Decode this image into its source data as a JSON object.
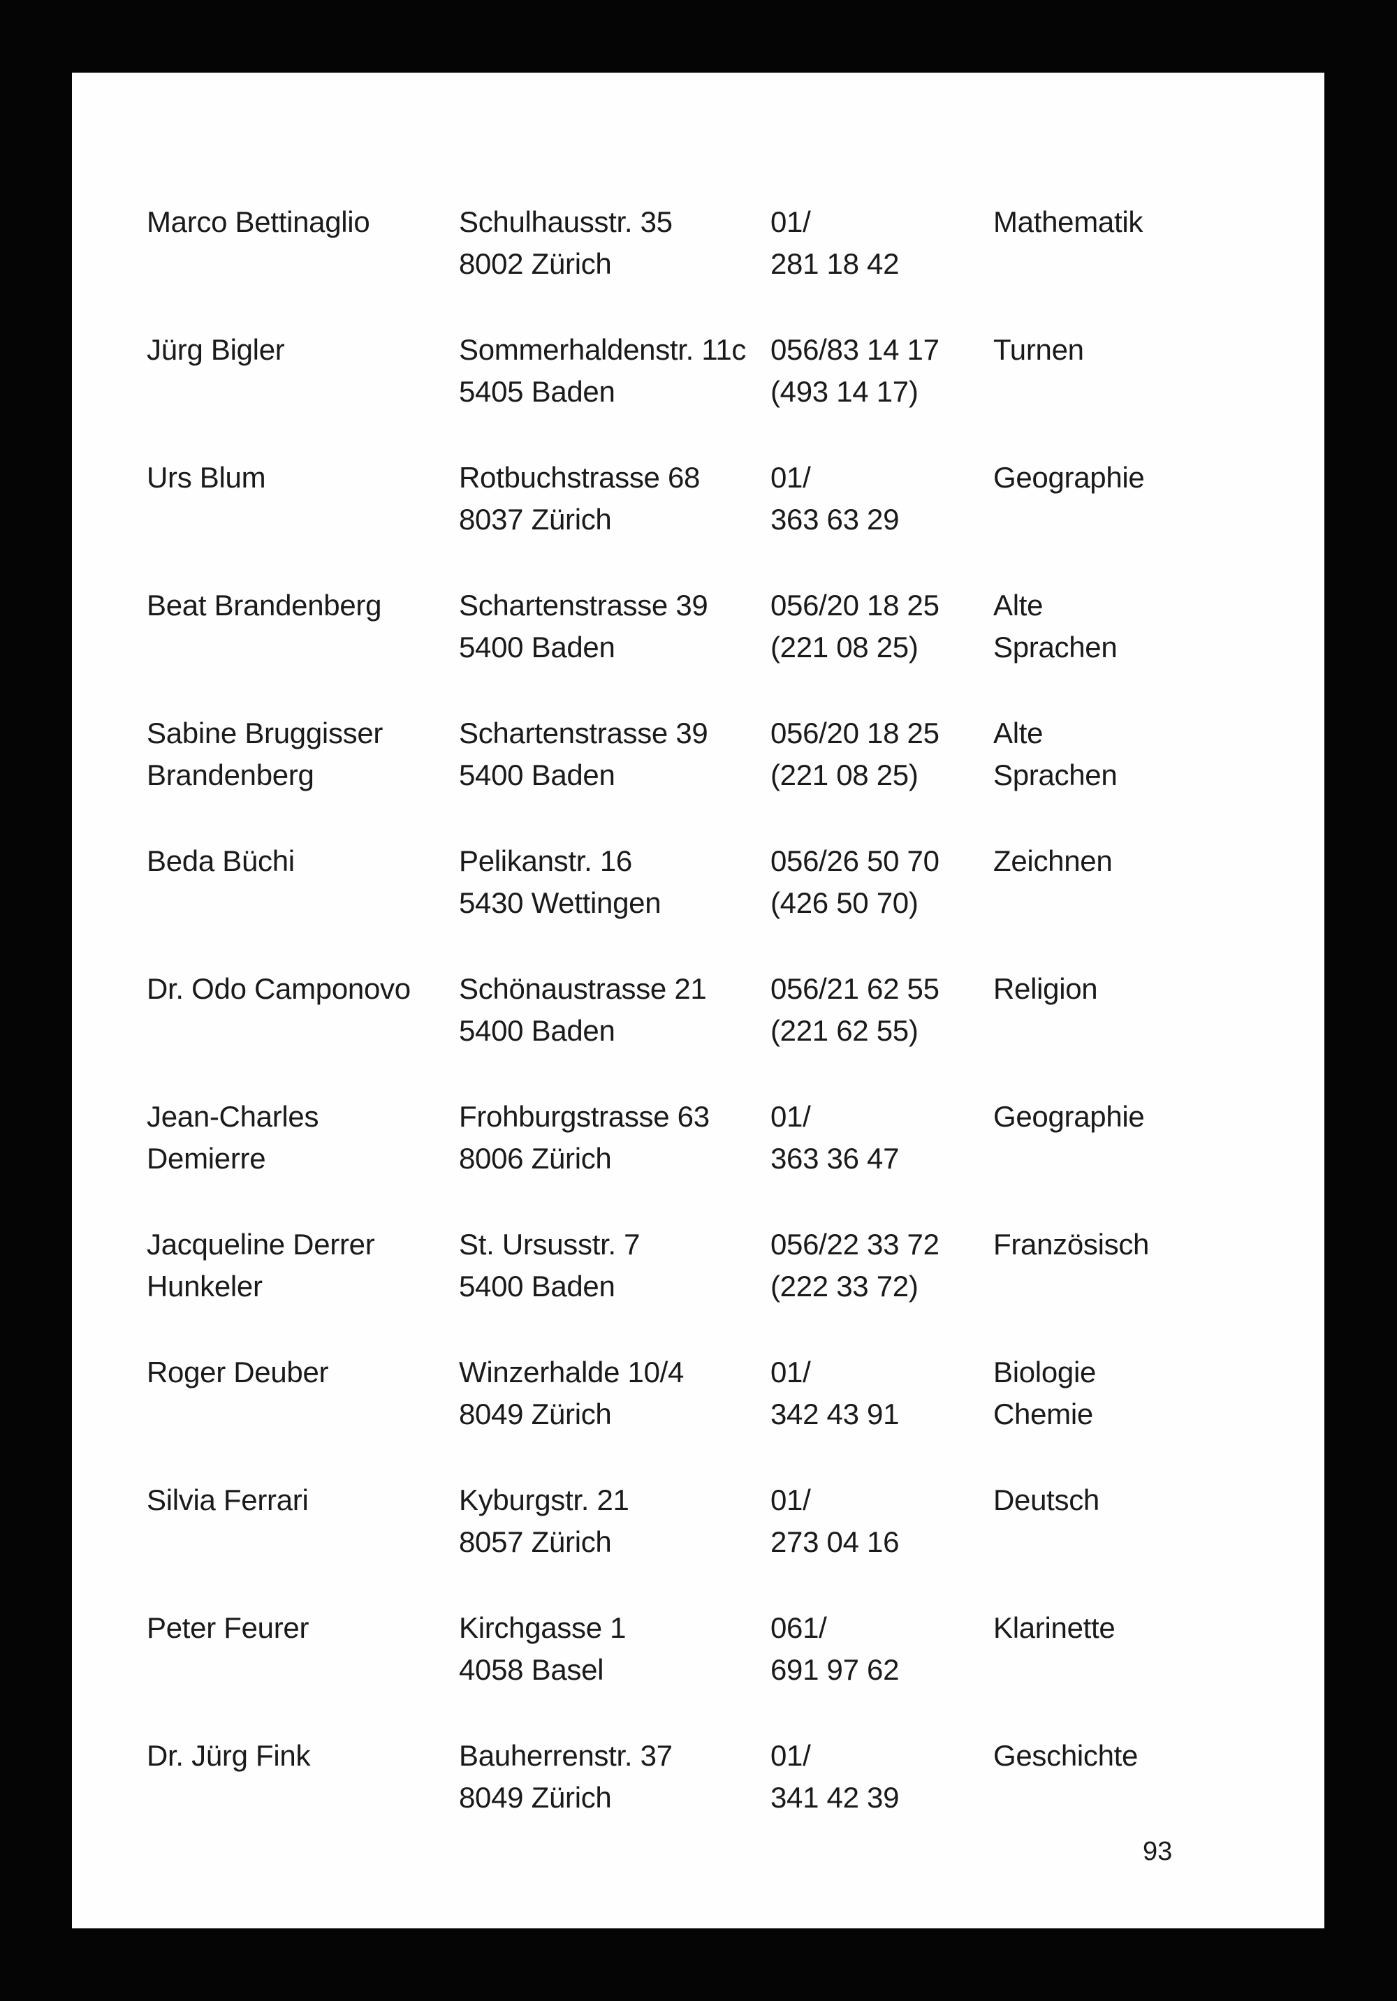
{
  "entries": [
    {
      "name": [
        "Marco Bettinaglio"
      ],
      "address": [
        "Schulhausstr. 35",
        "8002 Zürich"
      ],
      "phone": [
        "01/",
        "281 18 42"
      ],
      "subject": [
        "Mathematik"
      ]
    },
    {
      "name": [
        "Jürg Bigler"
      ],
      "address": [
        "Sommerhaldenstr. 11c",
        "5405 Baden"
      ],
      "phone": [
        "056/83 14 17",
        "(493 14 17)"
      ],
      "subject": [
        "Turnen"
      ]
    },
    {
      "name": [
        "Urs Blum"
      ],
      "address": [
        "Rotbuchstrasse 68",
        "8037 Zürich"
      ],
      "phone": [
        "01/",
        "363 63 29"
      ],
      "subject": [
        "Geographie"
      ]
    },
    {
      "name": [
        "Beat Brandenberg"
      ],
      "address": [
        "Schartenstrasse 39",
        "5400 Baden"
      ],
      "phone": [
        "056/20 18 25",
        "(221 08 25)"
      ],
      "subject": [
        "Alte",
        "Sprachen"
      ]
    },
    {
      "name": [
        "Sabine Bruggisser",
        "Brandenberg"
      ],
      "address": [
        "Schartenstrasse 39",
        "5400 Baden"
      ],
      "phone": [
        "056/20 18 25",
        "(221 08 25)"
      ],
      "subject": [
        "Alte",
        "Sprachen"
      ]
    },
    {
      "name": [
        "Beda Büchi"
      ],
      "address": [
        "Pelikanstr. 16",
        "5430 Wettingen"
      ],
      "phone": [
        "056/26 50 70",
        "(426 50 70)"
      ],
      "subject": [
        "Zeichnen"
      ]
    },
    {
      "name": [
        "Dr. Odo Camponovo"
      ],
      "address": [
        "Schönaustrasse 21",
        "5400 Baden"
      ],
      "phone": [
        "056/21 62 55",
        "(221 62 55)"
      ],
      "subject": [
        "Religion"
      ]
    },
    {
      "name": [
        "Jean-Charles",
        "Demierre"
      ],
      "address": [
        "Frohburgstrasse 63",
        "8006 Zürich"
      ],
      "phone": [
        "01/",
        "363 36 47"
      ],
      "subject": [
        "Geographie"
      ]
    },
    {
      "name": [
        "Jacqueline Derrer",
        "Hunkeler"
      ],
      "address": [
        "St. Ursusstr. 7",
        "5400 Baden"
      ],
      "phone": [
        "056/22 33 72",
        "(222 33 72)"
      ],
      "subject": [
        "Französisch"
      ]
    },
    {
      "name": [
        "Roger Deuber"
      ],
      "address": [
        "Winzerhalde 10/4",
        "8049 Zürich"
      ],
      "phone": [
        "01/",
        "342 43 91"
      ],
      "subject": [
        "Biologie",
        "Chemie"
      ]
    },
    {
      "name": [
        "Silvia Ferrari"
      ],
      "address": [
        "Kyburgstr. 21",
        "8057 Zürich"
      ],
      "phone": [
        "01/",
        "273 04 16"
      ],
      "subject": [
        "Deutsch"
      ]
    },
    {
      "name": [
        "Peter Feurer"
      ],
      "address": [
        "Kirchgasse 1",
        "4058 Basel"
      ],
      "phone": [
        "061/",
        "691 97 62"
      ],
      "subject": [
        "Klarinette"
      ]
    },
    {
      "name": [
        "Dr. Jürg Fink"
      ],
      "address": [
        "Bauherrenstr. 37",
        "8049 Zürich"
      ],
      "phone": [
        "01/",
        "341 42 39"
      ],
      "subject": [
        "Geschichte"
      ]
    }
  ],
  "page_number": "93"
}
